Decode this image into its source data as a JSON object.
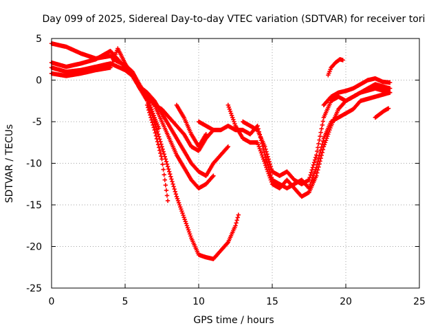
{
  "chart_data": {
    "type": "scatter",
    "title": "Day 099 of 2025, Sidereal Day-to-day VTEC variation (SDTVAR) for receiver tori",
    "xlabel": "GPS time / hours",
    "ylabel": "SDTVAR / TECUs",
    "xlim": [
      0,
      25
    ],
    "ylim": [
      -25,
      5
    ],
    "x_ticks": [
      0,
      5,
      10,
      15,
      20,
      25
    ],
    "y_ticks": [
      5,
      0,
      -5,
      -10,
      -15,
      -20,
      -25
    ],
    "grid": true,
    "marker": "+",
    "color": "#ff0000",
    "series": [
      {
        "x": [
          0,
          1,
          2,
          3,
          4,
          4.4,
          5,
          5.5,
          6,
          6.5,
          7,
          7.3
        ],
        "values": [
          4.4,
          4.0,
          3.2,
          2.6,
          2.9,
          2.3,
          1.8,
          1.0,
          -0.6,
          -2.0,
          -4.5,
          -5.8
        ]
      },
      {
        "x": [
          0,
          1,
          2,
          3,
          4,
          5,
          5.5,
          6,
          6.5,
          7,
          7.5,
          8,
          8.5,
          9,
          9.5,
          10,
          10.5,
          11
        ],
        "values": [
          2.1,
          1.6,
          2.0,
          2.5,
          3.5,
          1.5,
          0.5,
          -1.0,
          -2.0,
          -3.0,
          -5.0,
          -7.0,
          -9.0,
          -10.5,
          -12.0,
          -13.0,
          -12.5,
          -11.5
        ]
      },
      {
        "x": [
          0,
          1,
          2,
          3,
          4,
          5,
          5.5,
          6,
          6.5,
          7,
          7.5,
          8,
          8.5,
          9,
          9.5,
          10,
          10.5,
          11,
          11.5,
          12
        ],
        "values": [
          1.5,
          1.0,
          1.2,
          1.6,
          2.0,
          1.2,
          0.5,
          -0.8,
          -1.5,
          -2.5,
          -4.0,
          -5.5,
          -7.0,
          -8.5,
          -10.0,
          -11.0,
          -11.5,
          -10.0,
          -9.0,
          -8.0
        ]
      },
      {
        "x": [
          0,
          1,
          2,
          3,
          4,
          4.5,
          5,
          5.5,
          6,
          6.5,
          7,
          7.5,
          8,
          8.5,
          9,
          9.5,
          10,
          10.5,
          11
        ],
        "values": [
          0.8,
          0.5,
          0.8,
          1.2,
          1.5,
          3.8,
          2.0,
          0.5,
          -1.0,
          -2.0,
          -3.0,
          -3.5,
          -4.5,
          -5.5,
          -6.5,
          -8.0,
          -8.5,
          -7.0,
          -6.0
        ]
      },
      {
        "x": [
          6.0,
          6.5,
          7,
          7.5,
          8,
          8.5,
          9,
          9.5,
          10,
          10.5,
          11,
          11.5,
          12,
          12.5,
          12.7
        ],
        "values": [
          -1.0,
          -2.5,
          -5.0,
          -8.0,
          -11.0,
          -14.0,
          -16.5,
          -19.0,
          -21.0,
          -21.3,
          -21.5,
          -20.5,
          -19.5,
          -17.5,
          -16.2
        ]
      },
      {
        "x": [
          6.5,
          7,
          7.5,
          7.9
        ],
        "values": [
          -3.0,
          -6.0,
          -9.5,
          -14.5
        ]
      },
      {
        "x": [
          8.5,
          9,
          9.5,
          10,
          10.5
        ],
        "values": [
          -3.0,
          -4.5,
          -6.5,
          -8.0,
          -6.5
        ]
      },
      {
        "x": [
          10,
          10.5,
          11,
          11.5,
          12,
          12.5,
          13,
          13.5,
          14,
          14.5,
          15,
          15.5,
          16,
          16.5,
          17,
          17.5,
          18,
          18.5,
          19,
          19.5,
          20,
          20.5,
          21,
          22,
          23
        ],
        "values": [
          -5.0,
          -5.5,
          -6.0,
          -6.0,
          -5.5,
          -6.0,
          -6.0,
          -6.5,
          -5.5,
          -9.0,
          -12.0,
          -12.5,
          -13.0,
          -12.5,
          -12.0,
          -13.0,
          -10.5,
          -7.0,
          -5.0,
          -4.5,
          -4.0,
          -3.5,
          -2.5,
          -2.0,
          -1.5
        ]
      },
      {
        "x": [
          12,
          12.5,
          13,
          13.5,
          14,
          14.5,
          15,
          15.5,
          16,
          16.5,
          17,
          17.5,
          18,
          18.5,
          19,
          19.5,
          20,
          21,
          22,
          23
        ],
        "values": [
          -3.0,
          -5.5,
          -7.0,
          -7.5,
          -7.5,
          -10.0,
          -12.5,
          -13.0,
          -12.0,
          -13.0,
          -14.0,
          -13.5,
          -11.5,
          -8.0,
          -5.5,
          -3.5,
          -2.5,
          -1.5,
          -0.5,
          -1.0
        ]
      },
      {
        "x": [
          13,
          13.5,
          14,
          14.5,
          15,
          15.5,
          16,
          16.5,
          17,
          17.5,
          18,
          18.5,
          19,
          19.5,
          20,
          21,
          22,
          23
        ],
        "values": [
          -5.0,
          -5.5,
          -6.0,
          -8.0,
          -11.0,
          -11.5,
          -11.0,
          -12.0,
          -12.5,
          -12.0,
          -9.0,
          -4.5,
          -2.5,
          -2.0,
          -2.5,
          -1.5,
          -1.0,
          -1.5
        ]
      },
      {
        "x": [
          18.8,
          19.0,
          19.3,
          19.6,
          19.8
        ],
        "values": [
          0.6,
          1.5,
          2.1,
          2.5,
          2.4
        ]
      },
      {
        "x": [
          22.0,
          22.3,
          22.6,
          22.9
        ],
        "values": [
          -4.5,
          -4.1,
          -3.7,
          -3.4
        ]
      },
      {
        "x": [
          18.5,
          19.0,
          19.5,
          20.0,
          20.5,
          21.0,
          21.5,
          22.0,
          22.5,
          23.0
        ],
        "values": [
          -3.0,
          -2.0,
          -1.5,
          -1.3,
          -1.0,
          -0.5,
          0.0,
          0.2,
          -0.2,
          -0.3
        ]
      }
    ]
  }
}
